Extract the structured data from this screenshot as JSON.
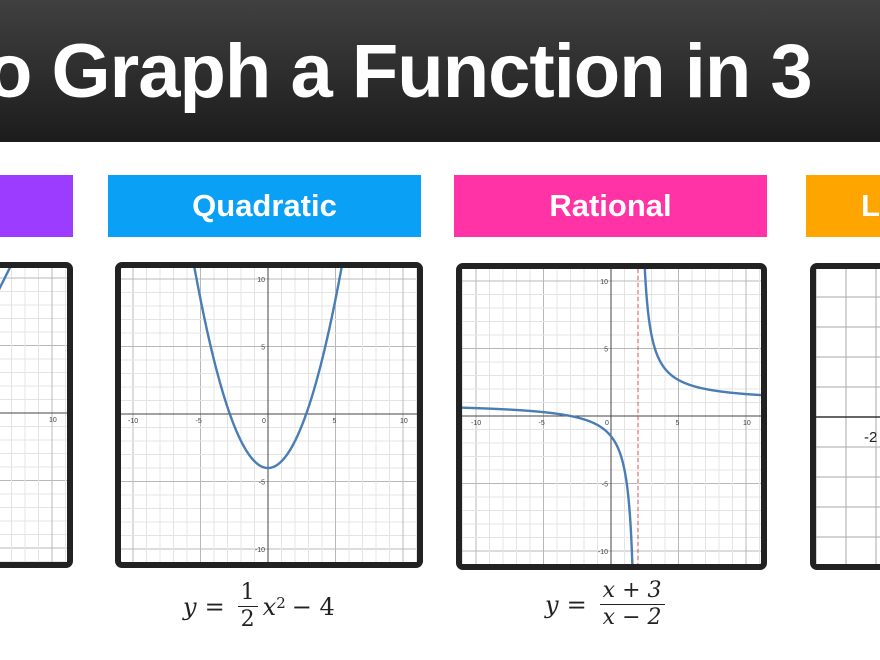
{
  "header": {
    "title": "o Graph a Function in 3"
  },
  "labels": [
    {
      "text": "",
      "color": "#9b3cff"
    },
    {
      "text": "Quadratic",
      "color": "#0aa0f5"
    },
    {
      "text": "Rational",
      "color": "#ff33a6"
    },
    {
      "text": "Lo",
      "color": "#ffa500"
    }
  ],
  "formulas": {
    "quadratic": {
      "lhs": "y",
      "eq": "=",
      "num": "1",
      "den": "2",
      "var": "x",
      "exp": "2",
      "rest": "− 4"
    },
    "rational": {
      "lhs": "y",
      "eq": "=",
      "num": "x + 3",
      "den": "x − 2"
    }
  },
  "colors": {
    "curve": "#4a7db3",
    "asymptote": "#d9534f",
    "frame": "#222222"
  },
  "chart_data": [
    {
      "type": "line",
      "panel": "linear",
      "x_ticks": [
        10
      ],
      "y_ticks": [],
      "xlim": [
        6.1,
        11
      ],
      "ylim": [
        -11,
        11
      ],
      "grid": true,
      "points": [
        [
          6,
          9
        ],
        [
          7,
          11
        ]
      ]
    },
    {
      "type": "line",
      "panel": "quadratic",
      "title": "Quadratic",
      "equation": "y = 1/2 x^2 − 4",
      "x_ticks": [
        -10,
        -5,
        0,
        5,
        10
      ],
      "y_ticks": [
        10,
        5,
        -5,
        -10
      ],
      "xlim": [
        -11,
        11
      ],
      "ylim": [
        -11,
        11
      ],
      "grid": true,
      "vertex": [
        0,
        -4
      ],
      "roots": [
        -2.83,
        2.83
      ]
    },
    {
      "type": "line",
      "panel": "rational",
      "title": "Rational",
      "equation": "y = (x + 3)/(x − 2)",
      "x_ticks": [
        -10,
        -5,
        0,
        5,
        10
      ],
      "y_ticks": [
        10,
        5,
        -5,
        -10
      ],
      "xlim": [
        -11,
        11
      ],
      "ylim": [
        -11,
        11
      ],
      "grid": true,
      "vertical_asymptote": 2,
      "horizontal_asymptote": 1
    },
    {
      "type": "line",
      "panel": "partial",
      "x_ticks": [
        -2
      ],
      "grid": true
    }
  ]
}
